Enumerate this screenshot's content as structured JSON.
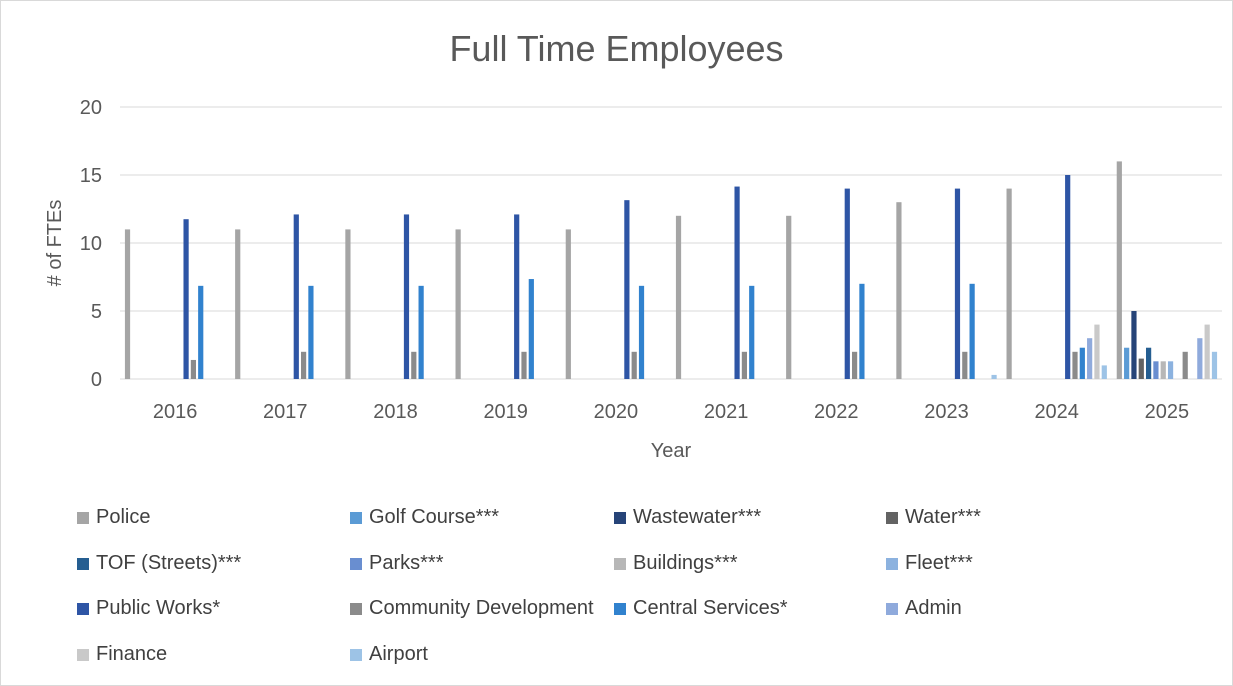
{
  "chart_data": {
    "type": "bar",
    "title": "Full Time Employees",
    "xlabel": "Year",
    "ylabel": "# of FTEs",
    "ylim": [
      0,
      20
    ],
    "yticks": [
      0,
      5,
      10,
      15,
      20
    ],
    "grid": true,
    "legend_position": "bottom",
    "categories": [
      "2016",
      "2017",
      "2018",
      "2019",
      "2020",
      "2021",
      "2022",
      "2023",
      "2024",
      "2025"
    ],
    "series": [
      {
        "name": "Police",
        "color": "#a5a5a5",
        "values": [
          11,
          11,
          11,
          11,
          11,
          12,
          12,
          13,
          14,
          16
        ]
      },
      {
        "name": "Golf Course***",
        "color": "#5b9bd5",
        "values": [
          0,
          0,
          0,
          0,
          0,
          0,
          0,
          0,
          0,
          2.3
        ]
      },
      {
        "name": "Wastewater***",
        "color": "#264478",
        "values": [
          0,
          0,
          0,
          0,
          0,
          0,
          0,
          0,
          0,
          5
        ]
      },
      {
        "name": "Water***",
        "color": "#636363",
        "values": [
          0,
          0,
          0,
          0,
          0,
          0,
          0,
          0,
          0,
          1.5
        ]
      },
      {
        "name": "TOF (Streets)***",
        "color": "#255e91",
        "values": [
          0,
          0,
          0,
          0,
          0,
          0,
          0,
          0,
          0,
          2.3
        ]
      },
      {
        "name": "Parks***",
        "color": "#698ed0",
        "values": [
          0,
          0,
          0,
          0,
          0,
          0,
          0,
          0,
          0,
          1.3
        ]
      },
      {
        "name": "Buildings***",
        "color": "#b7b7b7",
        "values": [
          0,
          0,
          0,
          0,
          0,
          0,
          0,
          0,
          0,
          1.3
        ]
      },
      {
        "name": "Fleet***",
        "color": "#8cb2df",
        "values": [
          0,
          0,
          0,
          0,
          0,
          0,
          0,
          0,
          0,
          1.3
        ]
      },
      {
        "name": "Public Works*",
        "color": "#2e55a5",
        "values": [
          11.75,
          12.1,
          12.1,
          12.1,
          13.15,
          14.15,
          14,
          14,
          15,
          0
        ]
      },
      {
        "name": "Community Development",
        "color": "#8b8b8b",
        "values": [
          1.4,
          2,
          2,
          2,
          2,
          2,
          2,
          2,
          2,
          2
        ]
      },
      {
        "name": "Central Services*",
        "color": "#3182ce",
        "values": [
          6.85,
          6.85,
          6.85,
          7.35,
          6.85,
          6.85,
          7,
          7,
          2.3,
          0
        ]
      },
      {
        "name": "Admin",
        "color": "#8faadc",
        "values": [
          0,
          0,
          0,
          0,
          0,
          0,
          0,
          0,
          3,
          3
        ]
      },
      {
        "name": "Finance",
        "color": "#c9c9c9",
        "values": [
          0,
          0,
          0,
          0,
          0,
          0,
          0,
          0,
          4,
          4
        ]
      },
      {
        "name": "Airport",
        "color": "#9dc3e6",
        "values": [
          0,
          0,
          0,
          0,
          0,
          0,
          0,
          0.3,
          1,
          2
        ]
      }
    ]
  }
}
